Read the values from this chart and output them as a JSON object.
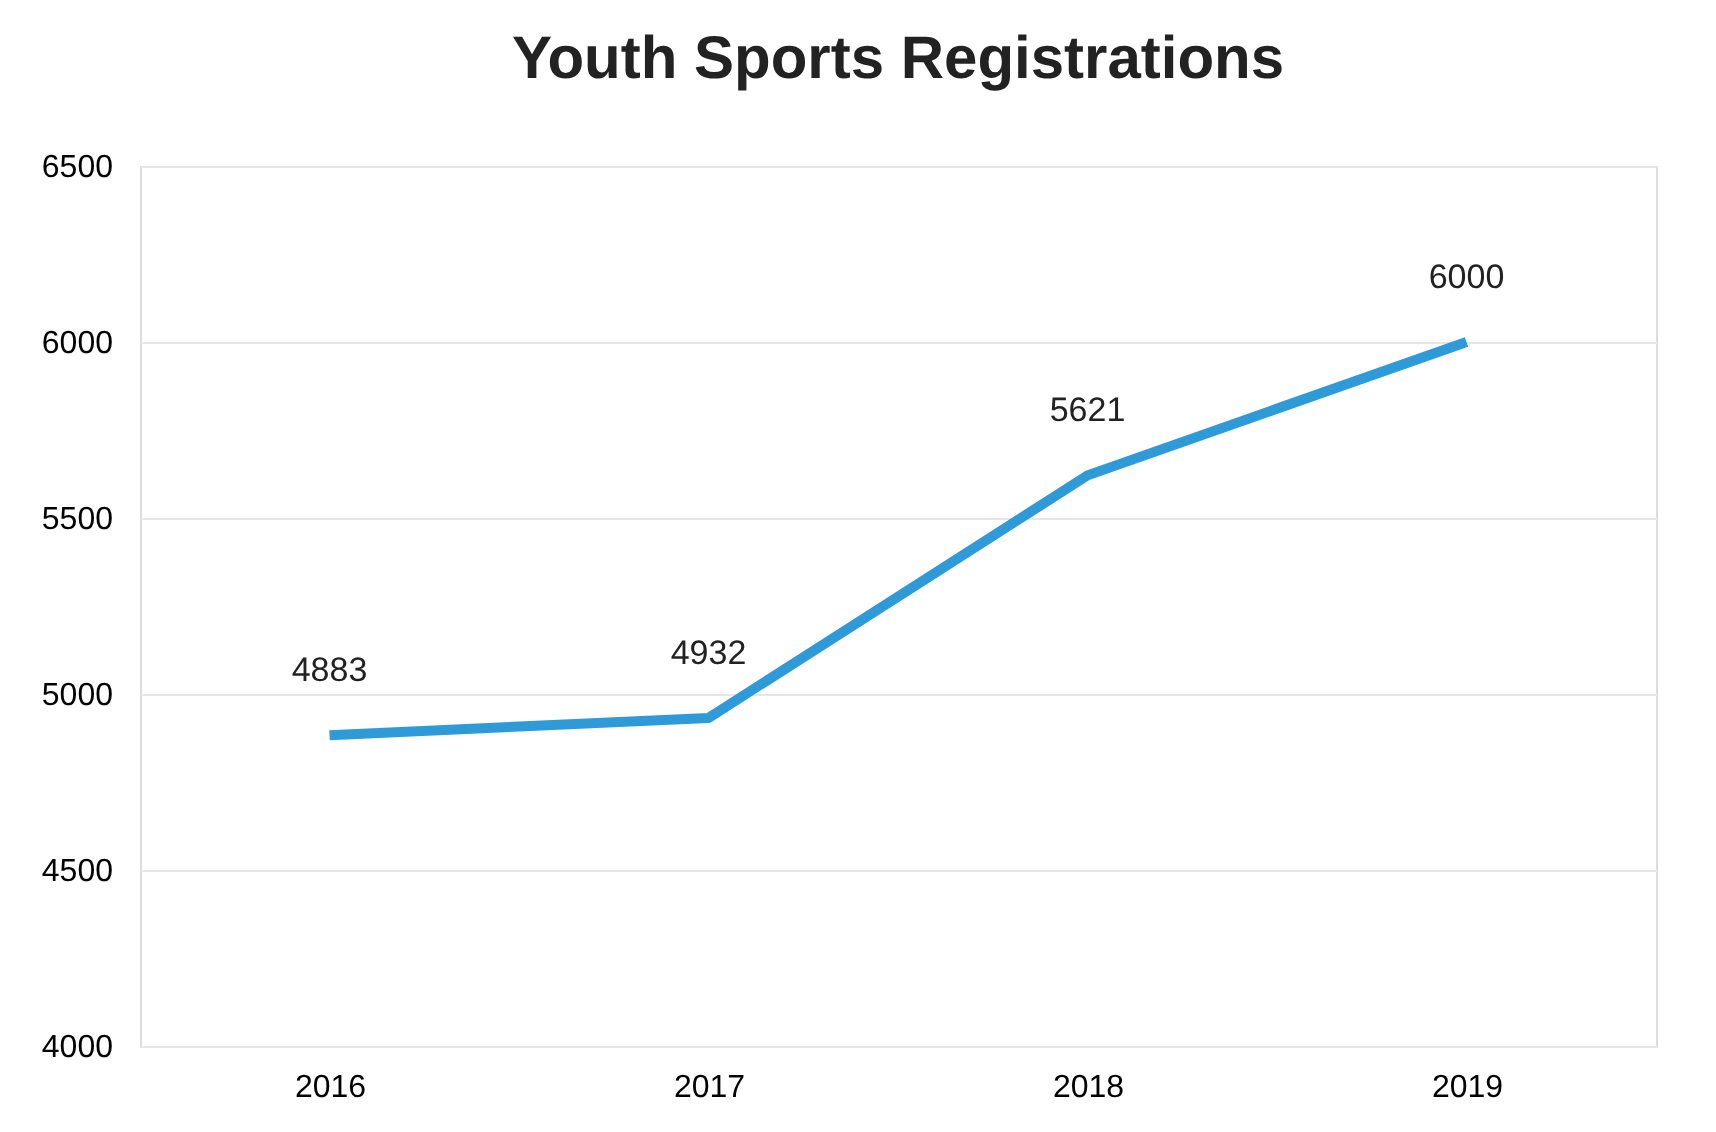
{
  "chart_data": {
    "type": "line",
    "title": "Youth Sports Registrations",
    "categories": [
      "2016",
      "2017",
      "2018",
      "2019"
    ],
    "series": [
      {
        "color": "#2e9ad8",
        "values": [
          4883,
          4932,
          5621,
          6000
        ]
      }
    ],
    "ylim": [
      4000,
      6500
    ],
    "yticks": [
      4000,
      4500,
      5000,
      5500,
      6000,
      6500
    ],
    "grid": "y",
    "data_labels": true,
    "marker": "none",
    "line_style": "solid",
    "legend": false
  }
}
